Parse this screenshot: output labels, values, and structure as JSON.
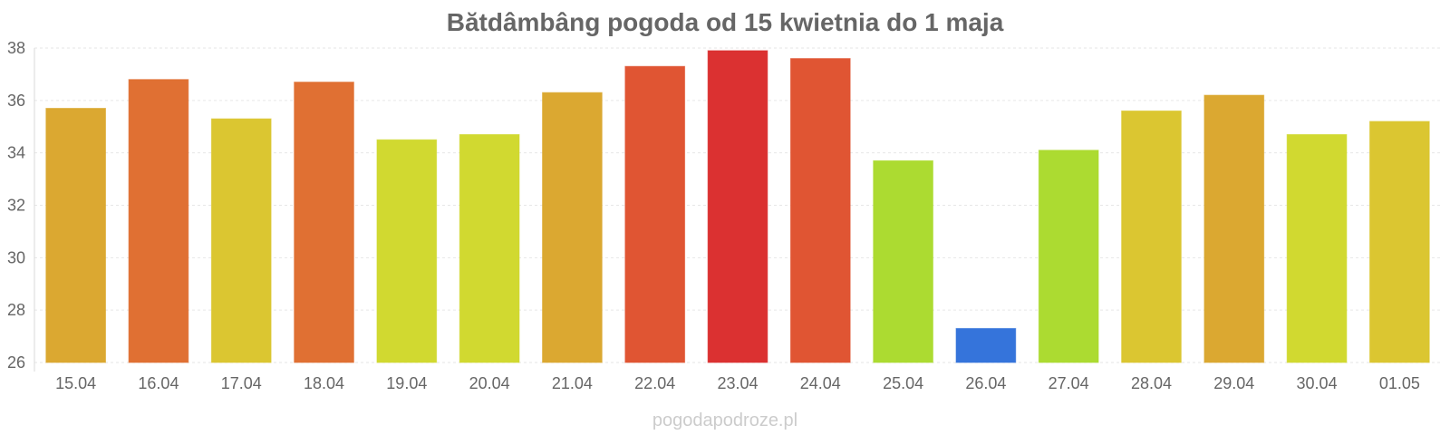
{
  "chart_data": {
    "type": "bar",
    "title": "Bătdâmbâng pogoda od 15 kwietnia do 1 maja",
    "xlabel": "",
    "ylabel": "",
    "ylim": [
      26,
      38
    ],
    "yticks": [
      26,
      28,
      30,
      32,
      34,
      36,
      38
    ],
    "grid": true,
    "categories": [
      "15.04",
      "16.04",
      "17.04",
      "18.04",
      "19.04",
      "20.04",
      "21.04",
      "22.04",
      "23.04",
      "24.04",
      "25.04",
      "26.04",
      "27.04",
      "28.04",
      "29.04",
      "30.04",
      "01.05"
    ],
    "values": [
      35.7,
      36.8,
      35.3,
      36.7,
      34.5,
      34.7,
      36.3,
      37.3,
      37.9,
      37.6,
      33.7,
      27.3,
      34.1,
      35.6,
      36.2,
      34.7,
      35.2
    ],
    "bar_colors": [
      "#dba831",
      "#e07033",
      "#dbc631",
      "#e07033",
      "#d1d930",
      "#d1d930",
      "#dba831",
      "#e05533",
      "#db3131",
      "#e05533",
      "#acdb31",
      "#3574db",
      "#acdb31",
      "#dbc631",
      "#dba831",
      "#d1d930",
      "#dbc631"
    ]
  },
  "watermark": "pogodapodroze.pl"
}
